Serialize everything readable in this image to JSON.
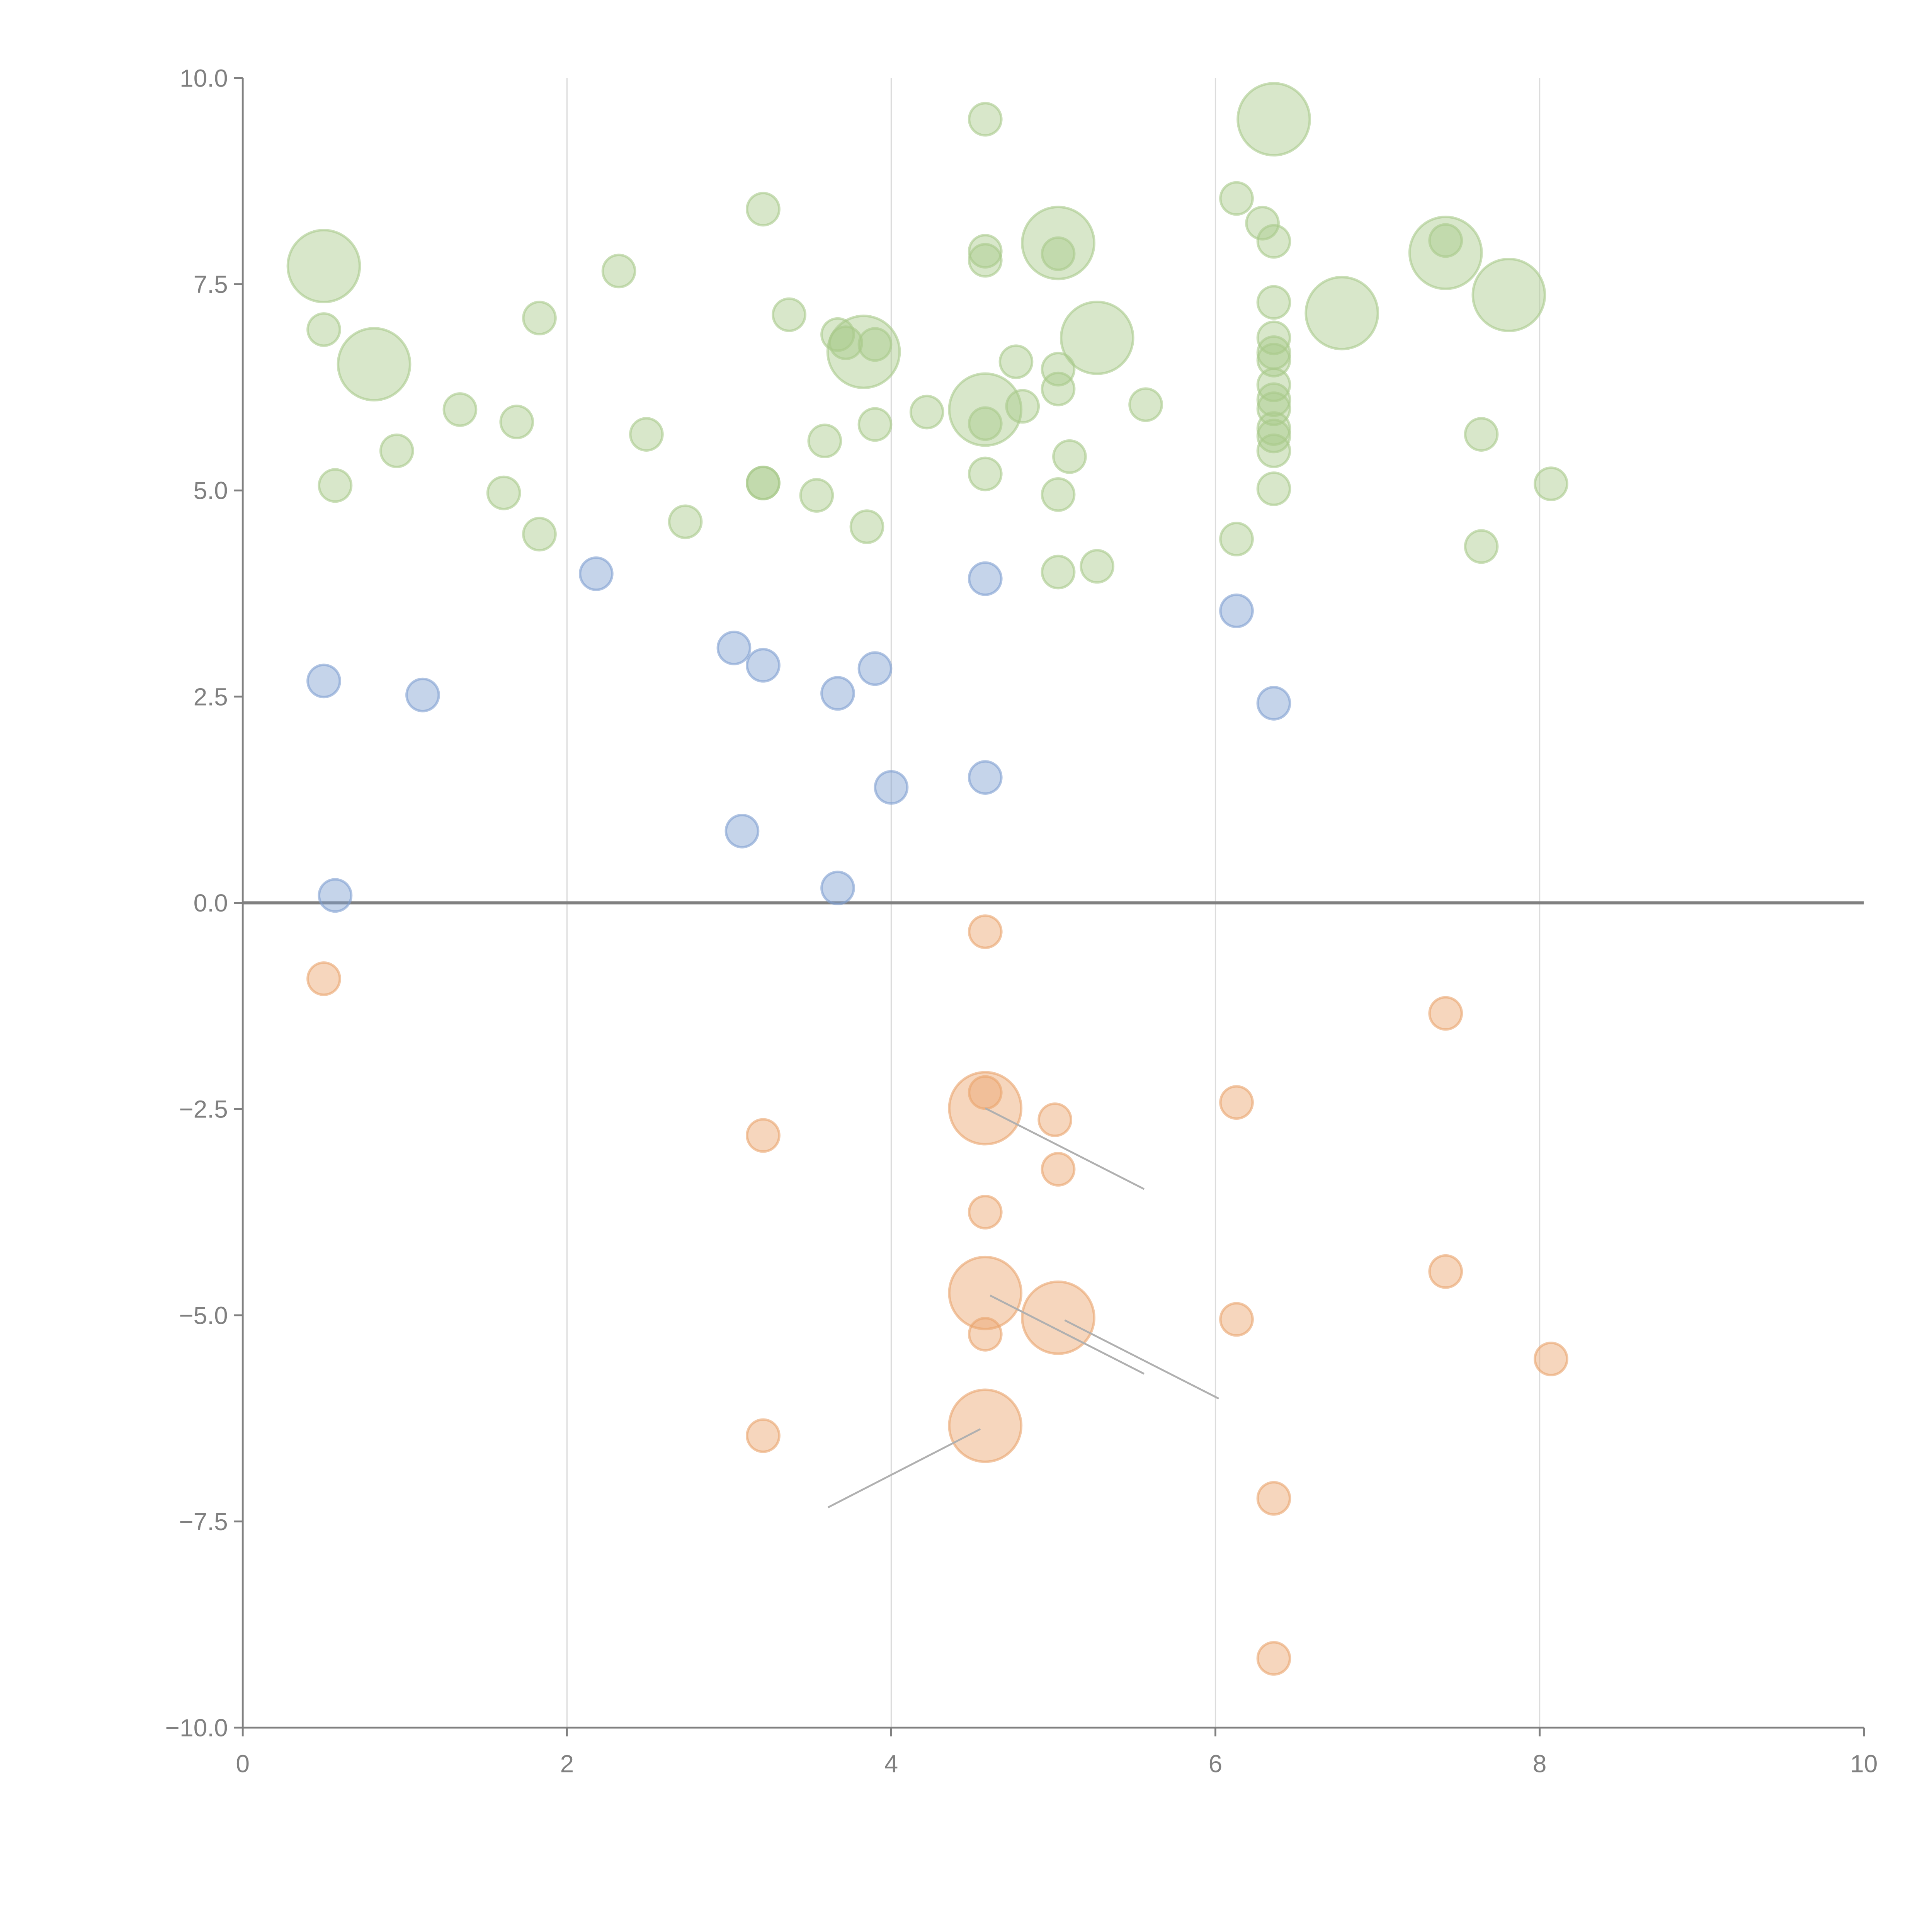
{
  "chart_data": {
    "type": "scatter",
    "title": "",
    "xlabel": "",
    "ylabel": "",
    "xlim": [
      0,
      10
    ],
    "ylim": [
      -10,
      10
    ],
    "grid": "vertical lines at major x ticks",
    "x_ticks": [
      "0",
      "2",
      "4",
      "6",
      "8",
      "10"
    ],
    "y_ticks": [
      "10.0",
      "7.5",
      "5.0",
      "2.5",
      "0.0",
      "−2.5",
      "−5.0",
      "−7.5",
      "−10.0"
    ],
    "x_tick_values": [
      0,
      2,
      4,
      6,
      8,
      10
    ],
    "y_tick_values": [
      10,
      7.5,
      5,
      2.5,
      0,
      -2.5,
      -5,
      -7.5,
      -10
    ],
    "reference_line_y": 0,
    "point_format": "[x, y, size]",
    "series": [
      {
        "name": "green",
        "color": "#a9c98a",
        "points": [
          [
            4.58,
            9.5,
            1
          ],
          [
            6.36,
            9.5,
            5
          ],
          [
            3.21,
            8.41,
            1
          ],
          [
            6.13,
            8.54,
            1
          ],
          [
            6.29,
            8.24,
            1
          ],
          [
            6.36,
            8.02,
            1
          ],
          [
            7.42,
            8.03,
            1
          ],
          [
            7.42,
            7.88,
            5
          ],
          [
            5.03,
            8.0,
            5
          ],
          [
            5.03,
            7.87,
            1
          ],
          [
            4.58,
            7.9,
            1
          ],
          [
            4.58,
            7.79,
            1
          ],
          [
            0.5,
            7.72,
            5
          ],
          [
            2.32,
            7.66,
            1
          ],
          [
            7.81,
            7.37,
            5
          ],
          [
            6.36,
            7.28,
            1
          ],
          [
            3.37,
            7.13,
            1
          ],
          [
            1.83,
            7.09,
            1
          ],
          [
            6.78,
            7.15,
            5
          ],
          [
            0.5,
            6.95,
            1
          ],
          [
            3.67,
            6.89,
            1
          ],
          [
            5.27,
            6.85,
            5
          ],
          [
            6.36,
            6.85,
            1
          ],
          [
            3.72,
            6.79,
            1
          ],
          [
            3.9,
            6.77,
            1
          ],
          [
            3.83,
            6.68,
            5
          ],
          [
            6.36,
            6.67,
            1
          ],
          [
            6.36,
            6.58,
            1
          ],
          [
            0.81,
            6.53,
            5
          ],
          [
            4.77,
            6.56,
            1
          ],
          [
            5.03,
            6.47,
            1
          ],
          [
            6.36,
            6.28,
            1
          ],
          [
            5.03,
            6.23,
            1
          ],
          [
            1.34,
            5.98,
            1
          ],
          [
            4.58,
            5.98,
            5
          ],
          [
            4.81,
            6.02,
            1
          ],
          [
            5.57,
            6.04,
            1
          ],
          [
            6.36,
            6.1,
            1
          ],
          [
            6.36,
            5.99,
            1
          ],
          [
            4.22,
            5.95,
            1
          ],
          [
            1.69,
            5.83,
            1
          ],
          [
            4.58,
            5.81,
            1
          ],
          [
            3.9,
            5.8,
            1
          ],
          [
            2.49,
            5.68,
            1
          ],
          [
            6.36,
            5.75,
            1
          ],
          [
            6.36,
            5.66,
            1
          ],
          [
            7.64,
            5.68,
            1
          ],
          [
            3.59,
            5.6,
            1
          ],
          [
            0.95,
            5.48,
            1
          ],
          [
            6.36,
            5.48,
            1
          ],
          [
            5.1,
            5.41,
            1
          ],
          [
            4.58,
            5.2,
            1
          ],
          [
            3.21,
            5.09,
            1
          ],
          [
            3.21,
            5.09,
            1
          ],
          [
            0.57,
            5.06,
            1
          ],
          [
            8.07,
            5.08,
            1
          ],
          [
            6.36,
            5.02,
            1
          ],
          [
            1.61,
            4.97,
            1
          ],
          [
            5.03,
            4.95,
            1
          ],
          [
            3.54,
            4.94,
            1
          ],
          [
            2.73,
            4.62,
            1
          ],
          [
            3.85,
            4.56,
            1
          ],
          [
            1.83,
            4.47,
            1
          ],
          [
            6.13,
            4.41,
            1
          ],
          [
            7.64,
            4.32,
            1
          ],
          [
            5.27,
            4.08,
            1
          ],
          [
            5.03,
            4.01,
            1
          ]
        ]
      },
      {
        "name": "blue",
        "color": "#7f9fd0",
        "points": [
          [
            2.18,
            3.99,
            1
          ],
          [
            4.58,
            3.93,
            1
          ],
          [
            6.13,
            3.54,
            1
          ],
          [
            3.03,
            3.09,
            1
          ],
          [
            3.21,
            2.88,
            1
          ],
          [
            3.9,
            2.84,
            1
          ],
          [
            0.5,
            2.69,
            1
          ],
          [
            3.67,
            2.54,
            1
          ],
          [
            1.11,
            2.52,
            1
          ],
          [
            6.36,
            2.42,
            1
          ],
          [
            4.58,
            1.52,
            1
          ],
          [
            4.0,
            1.4,
            1
          ],
          [
            3.08,
            0.87,
            1
          ],
          [
            3.67,
            0.18,
            1
          ],
          [
            0.57,
            0.09,
            1
          ]
        ]
      },
      {
        "name": "orange",
        "color": "#eaa46c",
        "points": [
          [
            4.58,
            -0.35,
            1
          ],
          [
            0.5,
            -0.92,
            1
          ],
          [
            7.42,
            -1.34,
            1
          ],
          [
            4.58,
            -2.3,
            1
          ],
          [
            4.58,
            -2.49,
            5
          ],
          [
            6.13,
            -2.42,
            1
          ],
          [
            5.01,
            -2.63,
            1
          ],
          [
            3.21,
            -2.82,
            1
          ],
          [
            5.03,
            -3.23,
            1
          ],
          [
            4.58,
            -3.75,
            1
          ],
          [
            7.42,
            -4.47,
            1
          ],
          [
            4.58,
            -4.73,
            5
          ],
          [
            5.03,
            -5.03,
            5
          ],
          [
            6.13,
            -5.05,
            1
          ],
          [
            4.58,
            -5.23,
            1
          ],
          [
            8.07,
            -5.53,
            1
          ],
          [
            4.58,
            -6.34,
            5
          ],
          [
            3.21,
            -6.46,
            1
          ],
          [
            6.36,
            -7.22,
            1
          ],
          [
            6.36,
            -9.16,
            1
          ]
        ]
      }
    ],
    "annotation_leaders": [
      {
        "from": [
          4.58,
          -2.49
        ],
        "to": [
          5.56,
          -3.47
        ]
      },
      {
        "from": [
          4.61,
          -4.76
        ],
        "to": [
          5.56,
          -5.71
        ]
      },
      {
        "from": [
          5.07,
          -5.06
        ],
        "to": [
          6.02,
          -6.01
        ]
      },
      {
        "from": [
          4.55,
          -6.38
        ],
        "to": [
          3.61,
          -7.33
        ]
      }
    ]
  }
}
